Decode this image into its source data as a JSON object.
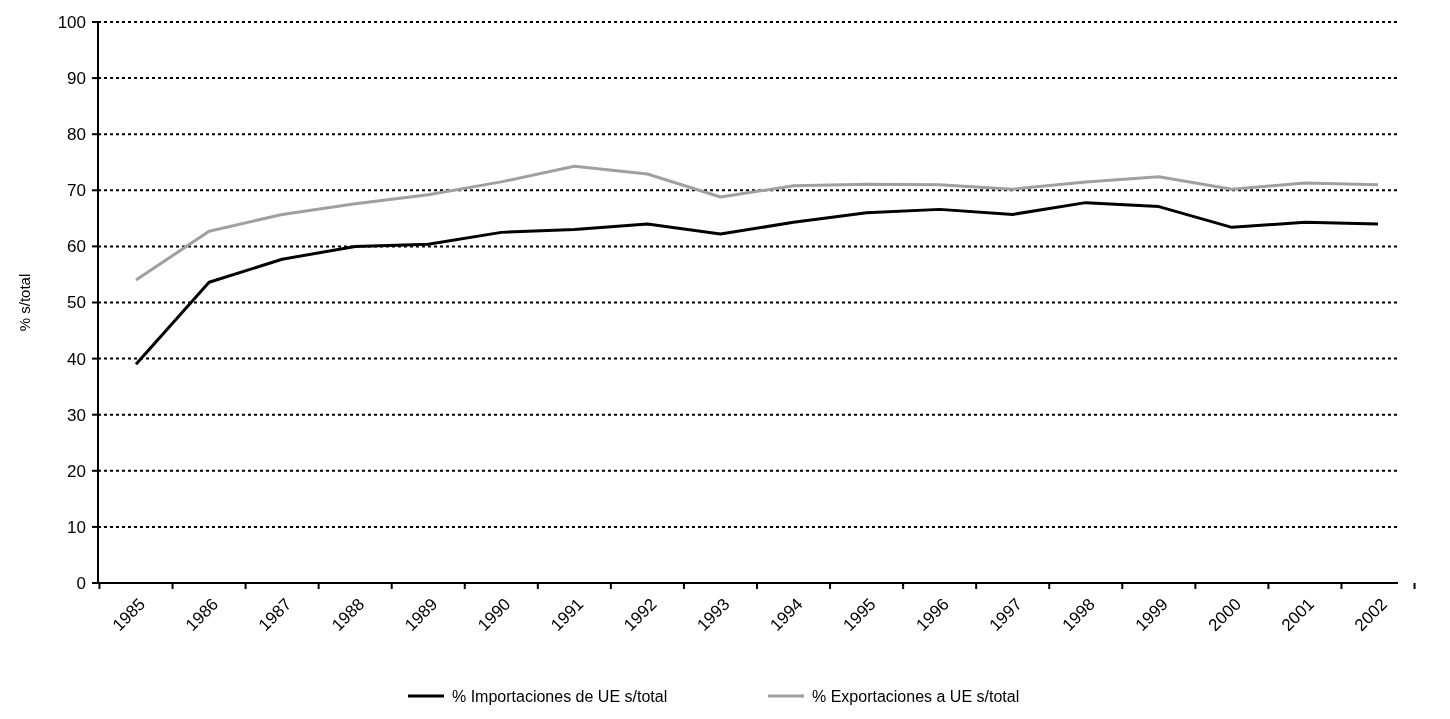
{
  "chart_data": {
    "type": "line",
    "ylabel": "% s/total",
    "categories": [
      "1985",
      "1986",
      "1987",
      "1988",
      "1989",
      "1990",
      "1991",
      "1992",
      "1993",
      "1994",
      "1995",
      "1996",
      "1997",
      "1998",
      "1999",
      "2000",
      "2001",
      "2002"
    ],
    "series": [
      {
        "name": "% Importaciones de UE s/total",
        "color": "#000000",
        "values": [
          39,
          53.6,
          57.7,
          60,
          60.4,
          62.5,
          63,
          64,
          62.2,
          64.3,
          66,
          66.6,
          65.7,
          67.8,
          67.1,
          63.4,
          64.3,
          64
        ]
      },
      {
        "name": "% Exportaciones a UE s/total",
        "color": "#a0a0a0",
        "values": [
          54,
          62.7,
          65.7,
          67.6,
          69.2,
          71.5,
          74.3,
          72.9,
          68.8,
          70.8,
          71.1,
          71,
          70.2,
          71.5,
          72.4,
          70.2,
          71.3,
          71
        ]
      }
    ],
    "ylim": [
      0,
      100
    ],
    "yticks": [
      0,
      10,
      20,
      30,
      40,
      50,
      60,
      70,
      80,
      90,
      100
    ],
    "grid": "y",
    "legend": "bottom",
    "marker": "none",
    "line_style": "solid"
  }
}
